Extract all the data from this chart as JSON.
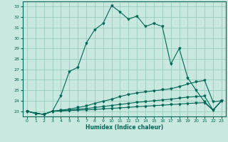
{
  "xlabel": "Humidex (Indice chaleur)",
  "xlim": [
    -0.5,
    23.5
  ],
  "ylim": [
    22.5,
    33.5
  ],
  "yticks": [
    23,
    24,
    25,
    26,
    27,
    28,
    29,
    30,
    31,
    32,
    33
  ],
  "xticks": [
    0,
    1,
    2,
    3,
    4,
    5,
    6,
    7,
    8,
    9,
    10,
    11,
    12,
    13,
    14,
    15,
    16,
    17,
    18,
    19,
    20,
    21,
    22,
    23
  ],
  "background_color": "#c8e8e0",
  "grid_color": "#99ccbb",
  "line_color": "#006655",
  "curves": [
    {
      "x": [
        0,
        1,
        2,
        3,
        4,
        5,
        6,
        7,
        8,
        9,
        10,
        11,
        12,
        13,
        14,
        15,
        16,
        17,
        18,
        19,
        20,
        21,
        22,
        23
      ],
      "y": [
        23.0,
        22.8,
        22.7,
        23.0,
        24.5,
        26.8,
        27.2,
        29.5,
        30.8,
        31.4,
        33.1,
        32.5,
        31.8,
        32.1,
        31.1,
        31.4,
        31.1,
        27.5,
        29.0,
        26.2,
        25.0,
        23.9,
        23.1,
        24.0
      ]
    },
    {
      "x": [
        0,
        1,
        2,
        3,
        4,
        5,
        6,
        7,
        8,
        9,
        10,
        11,
        12,
        13,
        14,
        15,
        16,
        17,
        18,
        19,
        20,
        21,
        22,
        23
      ],
      "y": [
        23.0,
        22.8,
        22.7,
        23.0,
        23.1,
        23.2,
        23.35,
        23.5,
        23.75,
        23.95,
        24.15,
        24.4,
        24.6,
        24.75,
        24.85,
        24.95,
        25.05,
        25.15,
        25.35,
        25.6,
        25.8,
        25.95,
        23.9,
        24.0
      ]
    },
    {
      "x": [
        0,
        1,
        2,
        3,
        4,
        5,
        6,
        7,
        8,
        9,
        10,
        11,
        12,
        13,
        14,
        15,
        16,
        17,
        18,
        19,
        20,
        21,
        22,
        23
      ],
      "y": [
        23.0,
        22.8,
        22.7,
        23.0,
        23.05,
        23.1,
        23.18,
        23.25,
        23.35,
        23.45,
        23.55,
        23.65,
        23.75,
        23.85,
        23.92,
        24.0,
        24.08,
        24.15,
        24.25,
        24.35,
        24.4,
        24.45,
        23.1,
        24.0
      ]
    },
    {
      "x": [
        0,
        1,
        2,
        3,
        4,
        5,
        6,
        7,
        8,
        9,
        10,
        11,
        12,
        13,
        14,
        15,
        16,
        17,
        18,
        19,
        20,
        21,
        22,
        23
      ],
      "y": [
        23.0,
        22.8,
        22.7,
        23.0,
        23.03,
        23.06,
        23.1,
        23.13,
        23.17,
        23.22,
        23.27,
        23.32,
        23.37,
        23.43,
        23.48,
        23.53,
        23.58,
        23.63,
        23.68,
        23.74,
        23.78,
        23.82,
        23.1,
        24.0
      ]
    }
  ]
}
